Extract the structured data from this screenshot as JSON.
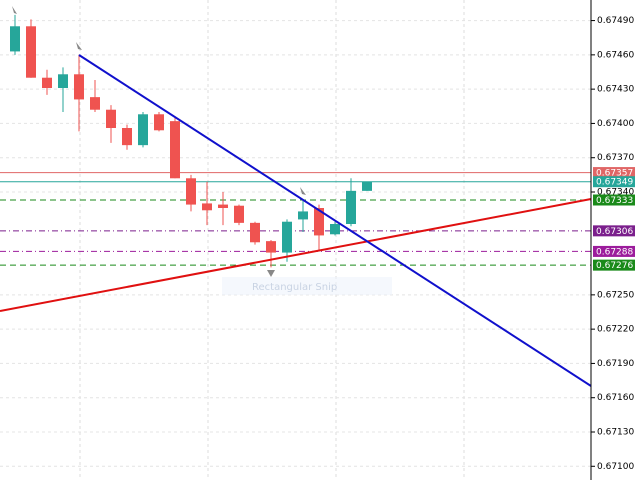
{
  "chart_data": {
    "type": "candlestick",
    "ylim": [
      0.67088,
      0.67508
    ],
    "yticks": [
      {
        "value": 0.6749,
        "label": "0.67490"
      },
      {
        "value": 0.6746,
        "label": "0.67460"
      },
      {
        "value": 0.6743,
        "label": "0.67430"
      },
      {
        "value": 0.674,
        "label": "0.67400"
      },
      {
        "value": 0.6737,
        "label": "0.67370"
      },
      {
        "value": 0.6734,
        "label": "0.67340"
      },
      {
        "value": 0.6725,
        "label": "0.67250"
      },
      {
        "value": 0.6722,
        "label": "0.67220"
      },
      {
        "value": 0.6719,
        "label": "0.67190"
      },
      {
        "value": 0.6716,
        "label": "0.67160"
      },
      {
        "value": 0.6713,
        "label": "0.67130"
      },
      {
        "value": 0.671,
        "label": "0.67100"
      }
    ],
    "grid": true,
    "up_color": "#26a69a",
    "down_color": "#ef5350",
    "open": [
      0.67463,
      0.67485,
      0.6744,
      0.67431,
      0.67443,
      0.67423,
      0.67412,
      0.67396,
      0.67381,
      0.67408,
      0.67402,
      0.67352,
      0.6733,
      0.67329,
      0.67328,
      0.67313,
      0.67297,
      0.67287,
      0.67316,
      0.67326,
      0.67303,
      0.67312,
      0.67341
    ],
    "high": [
      0.67495,
      0.67491,
      0.67447,
      0.67449,
      0.6746,
      0.67438,
      0.67416,
      0.67399,
      0.6741,
      0.6741,
      0.67405,
      0.67355,
      0.67349,
      0.6734,
      0.67329,
      0.67314,
      0.67298,
      0.67316,
      0.67333,
      0.67329,
      0.67314,
      0.67352,
      0.67349
    ],
    "low": [
      0.6746,
      0.6744,
      0.67425,
      0.6741,
      0.67393,
      0.6741,
      0.67383,
      0.67377,
      0.67379,
      0.67393,
      0.67352,
      0.67323,
      0.67311,
      0.67311,
      0.67311,
      0.67294,
      0.67274,
      0.67279,
      0.67305,
      0.67289,
      0.67302,
      0.6731,
      0.67341
    ],
    "close": [
      0.67485,
      0.6744,
      0.67431,
      0.67443,
      0.67421,
      0.67412,
      0.67396,
      0.67381,
      0.67408,
      0.67394,
      0.67352,
      0.67329,
      0.67324,
      0.67326,
      0.67313,
      0.67296,
      0.67287,
      0.67314,
      0.67323,
      0.67302,
      0.67312,
      0.67341,
      0.67349
    ],
    "levels": [
      {
        "value": 0.67357,
        "color": "#e06666",
        "style": "solid"
      },
      {
        "value": 0.67349,
        "color": "#26a69a",
        "style": "solid"
      },
      {
        "value": 0.67333,
        "color": "#1a8a1a",
        "style": "dash"
      },
      {
        "value": 0.67306,
        "color": "#7b1f8c",
        "style": "dashdot"
      },
      {
        "value": 0.67288,
        "color": "#9c1c9c",
        "style": "dashdot"
      },
      {
        "value": 0.67276,
        "color": "#1a8a1a",
        "style": "dash"
      }
    ],
    "annotation": "Rectangular Snip"
  }
}
